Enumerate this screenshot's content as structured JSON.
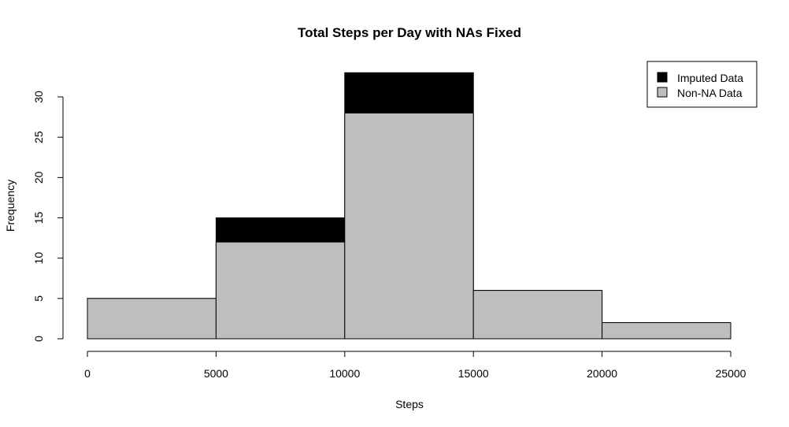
{
  "chart_data": {
    "type": "bar",
    "title": "Total Steps per Day with NAs Fixed",
    "xlabel": "Steps",
    "ylabel": "Frequency",
    "bins": [
      [
        0,
        5000
      ],
      [
        5000,
        10000
      ],
      [
        10000,
        15000
      ],
      [
        15000,
        20000
      ],
      [
        20000,
        25000
      ]
    ],
    "xlim": [
      0,
      25000
    ],
    "ylim": [
      0,
      33
    ],
    "xticks": [
      "0",
      "5000",
      "10000",
      "15000",
      "20000",
      "25000"
    ],
    "xtick_values": [
      0,
      5000,
      10000,
      15000,
      20000,
      25000
    ],
    "yticks": [
      "0",
      "5",
      "10",
      "15",
      "20",
      "25",
      "30"
    ],
    "ytick_values": [
      0,
      5,
      10,
      15,
      20,
      25,
      30
    ],
    "series": [
      {
        "name": "Imputed Data",
        "color": "#000000",
        "values": [
          5,
          15,
          33,
          6,
          2
        ]
      },
      {
        "name": "Non-NA Data",
        "color": "#bebebe",
        "values": [
          5,
          12,
          28,
          6,
          2
        ]
      }
    ],
    "legend": {
      "position": "top-right",
      "entries": [
        {
          "label": "Imputed Data",
          "color": "#000000"
        },
        {
          "label": "Non-NA Data",
          "color": "#bebebe"
        }
      ]
    },
    "grid": false
  }
}
